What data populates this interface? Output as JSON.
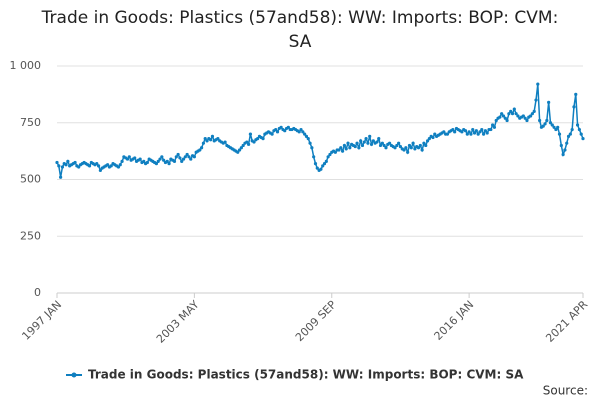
{
  "chart_data": {
    "type": "line",
    "title": "Trade in Goods: Plastics (57and58): WW: Imports: BOP: CVM: SA",
    "source": "Source:",
    "categories": [
      "1997 JAN",
      null,
      null,
      null,
      null,
      null,
      null,
      null,
      null,
      null,
      null,
      null,
      null,
      null,
      null,
      null,
      null,
      null,
      null,
      null,
      null,
      null,
      null,
      null,
      null,
      null,
      null,
      null,
      null,
      null,
      null,
      null,
      null,
      null,
      null,
      null,
      null,
      null,
      null,
      null,
      null,
      null,
      null,
      null,
      null,
      null,
      null,
      null,
      null,
      null,
      null,
      null,
      null,
      null,
      null,
      null,
      null,
      null,
      null,
      null,
      null,
      null,
      null,
      null,
      null,
      null,
      null,
      null,
      null,
      null,
      null,
      null,
      null,
      null,
      null,
      null,
      "2003 MAY",
      null,
      null,
      null,
      null,
      null,
      null,
      null,
      null,
      null,
      null,
      null,
      null,
      null,
      null,
      null,
      null,
      null,
      null,
      null,
      null,
      null,
      null,
      null,
      null,
      null,
      null,
      null,
      null,
      null,
      null,
      null,
      null,
      null,
      null,
      null,
      null,
      null,
      null,
      null,
      null,
      null,
      null,
      null,
      null,
      null,
      null,
      null,
      null,
      null,
      null,
      null,
      null,
      null,
      null,
      null,
      null,
      null,
      null,
      null,
      null,
      null,
      null,
      null,
      null,
      null,
      null,
      null,
      null,
      null,
      null,
      null,
      null,
      null,
      null,
      null,
      "2009 SEP",
      null,
      null,
      null,
      null,
      null,
      null,
      null,
      null,
      null,
      null,
      null,
      null,
      null,
      null,
      null,
      null,
      null,
      null,
      null,
      null,
      null,
      null,
      null,
      null,
      null,
      null,
      null,
      null,
      null,
      null,
      null,
      null,
      null,
      null,
      null,
      null,
      null,
      null,
      null,
      null,
      null,
      null,
      null,
      null,
      null,
      null,
      null,
      null,
      null,
      null,
      null,
      null,
      null,
      null,
      null,
      null,
      null,
      null,
      null,
      null,
      null,
      null,
      null,
      null,
      null,
      null,
      null,
      null,
      null,
      null,
      null,
      null,
      null,
      null,
      null,
      "2016 JAN",
      null,
      null,
      null,
      null,
      null,
      null,
      null,
      null,
      null,
      null,
      null,
      null,
      null,
      null,
      null,
      null,
      null,
      null,
      null,
      null,
      null,
      null,
      null,
      null,
      null,
      null,
      null,
      null,
      null,
      null,
      null,
      null,
      null,
      null,
      null,
      null,
      null,
      null,
      null,
      null,
      null,
      null,
      null,
      null,
      null,
      null,
      null,
      null,
      null,
      null,
      null,
      null,
      null,
      null,
      null,
      null,
      null,
      null,
      null,
      null,
      null,
      null,
      "2021 APR"
    ],
    "series": [
      {
        "name": "Trade in Goods: Plastics (57and58): WW: Imports: BOP: CVM: SA",
        "color": "#0f7fc0",
        "values": [
          575,
          560,
          510,
          555,
          570,
          565,
          580,
          560,
          565,
          570,
          575,
          560,
          555,
          565,
          570,
          575,
          570,
          565,
          560,
          575,
          570,
          565,
          570,
          560,
          540,
          550,
          555,
          560,
          565,
          555,
          560,
          570,
          565,
          560,
          555,
          565,
          580,
          600,
          595,
          590,
          600,
          585,
          590,
          595,
          580,
          585,
          590,
          575,
          580,
          570,
          575,
          590,
          585,
          580,
          575,
          570,
          580,
          590,
          600,
          585,
          575,
          580,
          570,
          590,
          585,
          580,
          600,
          610,
          595,
          580,
          590,
          600,
          610,
          600,
          590,
          605,
          600,
          620,
          625,
          630,
          640,
          660,
          680,
          670,
          680,
          675,
          690,
          670,
          675,
          680,
          670,
          665,
          660,
          665,
          650,
          645,
          640,
          635,
          630,
          625,
          620,
          630,
          640,
          650,
          660,
          665,
          655,
          700,
          670,
          665,
          675,
          680,
          690,
          685,
          680,
          700,
          705,
          710,
          705,
          700,
          715,
          720,
          710,
          725,
          730,
          720,
          715,
          725,
          730,
          720,
          720,
          725,
          720,
          715,
          710,
          720,
          710,
          700,
          690,
          680,
          660,
          640,
          600,
          570,
          550,
          540,
          545,
          560,
          570,
          580,
          600,
          610,
          620,
          625,
          620,
          630,
          630,
          640,
          625,
          650,
          635,
          660,
          640,
          655,
          650,
          645,
          660,
          640,
          670,
          650,
          665,
          680,
          660,
          690,
          655,
          670,
          660,
          665,
          680,
          650,
          660,
          650,
          640,
          655,
          660,
          650,
          645,
          640,
          650,
          660,
          645,
          635,
          630,
          640,
          620,
          650,
          640,
          660,
          635,
          645,
          640,
          650,
          630,
          660,
          650,
          670,
          680,
          690,
          685,
          700,
          690,
          695,
          700,
          705,
          710,
          700,
          700,
          710,
          715,
          720,
          710,
          725,
          720,
          715,
          710,
          720,
          715,
          700,
          710,
          700,
          720,
          705,
          715,
          700,
          710,
          720,
          700,
          715,
          705,
          720,
          720,
          740,
          730,
          760,
          770,
          775,
          790,
          780,
          770,
          760,
          790,
          800,
          790,
          810,
          790,
          780,
          770,
          775,
          780,
          770,
          760,
          775,
          780,
          790,
          800,
          850,
          920,
          760,
          730,
          735,
          745,
          760,
          840,
          750,
          740,
          730,
          720,
          730,
          700,
          650,
          610,
          630,
          660,
          690,
          700,
          720,
          820,
          875,
          740,
          720,
          700,
          680
        ]
      }
    ],
    "ylim": [
      0,
      1000
    ],
    "yticks": [
      0,
      250,
      500,
      750,
      {
        "value": 1000,
        "label": "1 000"
      }
    ],
    "grid": true
  }
}
